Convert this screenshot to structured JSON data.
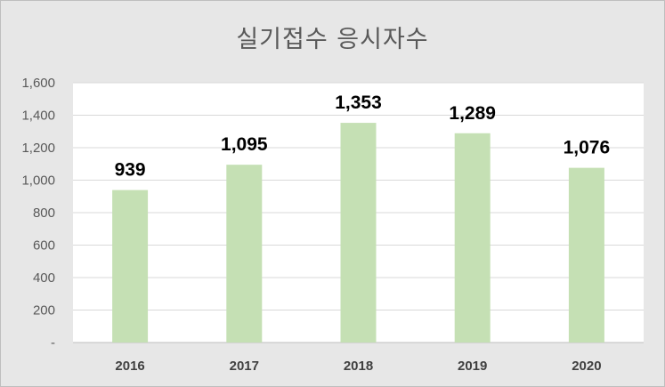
{
  "chart_data": {
    "type": "bar",
    "title": "실기접수 응시자수",
    "categories": [
      "2016",
      "2017",
      "2018",
      "2019",
      "2020"
    ],
    "values": [
      939,
      1095,
      1353,
      1289,
      1076
    ],
    "value_labels": [
      "939",
      "1,095",
      "1,353",
      "1,289",
      "1,076"
    ],
    "ylim": [
      0,
      1600
    ],
    "yticks": [
      0,
      200,
      400,
      600,
      800,
      1000,
      1200,
      1400,
      1600
    ],
    "ytick_labels": [
      "-",
      "200",
      "400",
      "600",
      "800",
      "1,000",
      "1,200",
      "1,400",
      "1,600"
    ],
    "xlabel": "",
    "ylabel": "",
    "grid": true,
    "legend": "none",
    "colors": {
      "bar": "#c5e0b4",
      "plot_background": "#ffffff",
      "chart_background": "#e7e7e7",
      "gridline": "#d9d9d9"
    }
  }
}
